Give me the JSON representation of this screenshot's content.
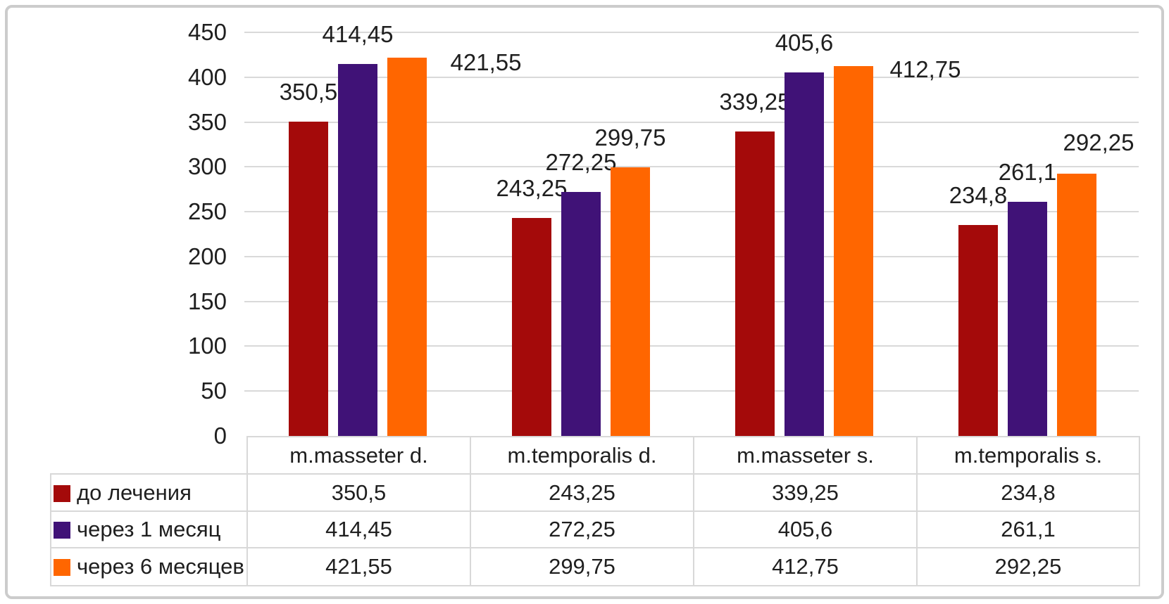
{
  "chart_data": {
    "type": "bar",
    "title": "",
    "xlabel": "",
    "ylabel": "",
    "categories": [
      "m.masseter d.",
      "m.temporalis d.",
      "m.masseter s.",
      "m.temporalis s."
    ],
    "series": [
      {
        "name": "до лечения",
        "color": "#a40a0a",
        "values": [
          350.5,
          243.25,
          339.25,
          234.8
        ],
        "labels": [
          "350,5",
          "243,25",
          "339,25",
          "234,8"
        ]
      },
      {
        "name": "через 1 месяц",
        "color": "#401277",
        "values": [
          414.45,
          272.25,
          405.6,
          261.1
        ],
        "labels": [
          "414,45",
          "272,25",
          "405,6",
          "261,1"
        ]
      },
      {
        "name": "через 6 месяцев",
        "color": "#ff6600",
        "values": [
          421.55,
          299.75,
          412.75,
          292.25
        ],
        "labels": [
          "421,55",
          "299,75",
          "412,75",
          "292,25"
        ]
      }
    ],
    "ylim": [
      0,
      450
    ],
    "ytick_step": 50,
    "yticks": [
      "0",
      "50",
      "100",
      "150",
      "200",
      "250",
      "300",
      "350",
      "400",
      "450"
    ],
    "grid": true,
    "legend_position": "table-left",
    "decimal_separator": ","
  }
}
